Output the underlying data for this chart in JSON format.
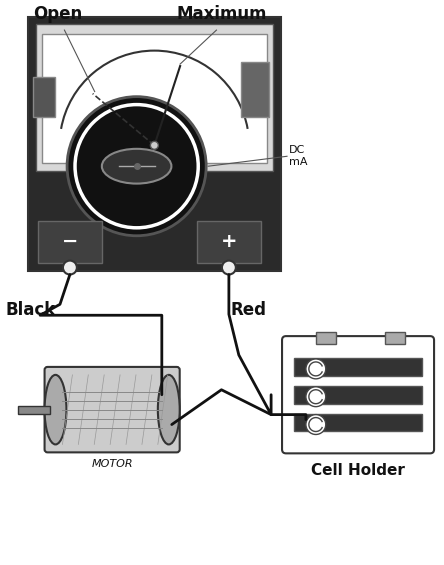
{
  "bg_color": "#ffffff",
  "labels": {
    "open": "Open",
    "maximum": "Maximum",
    "black": "Black",
    "red": "Red",
    "motor": "MOTOR",
    "cell_holder": "Cell Holder",
    "dc_ma": "DC\nmA"
  },
  "text_color": "#111111",
  "wire_color": "#111111",
  "meter_dark": "#2a2a2a",
  "meter_face": "#d8d8d8",
  "dial_bg": "#ffffff",
  "knob_color": "#111111",
  "annotation_color": "#555555"
}
